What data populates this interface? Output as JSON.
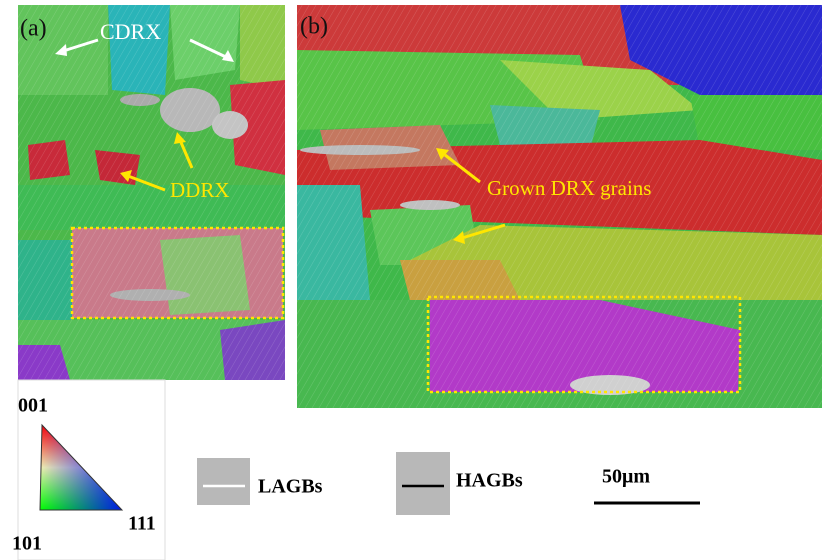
{
  "panels": {
    "a": {
      "label": "(a)",
      "annotations": [
        "CDRX",
        "DDRX"
      ]
    },
    "b": {
      "label": "(b)",
      "annotations": [
        "Grown DRX grains"
      ]
    }
  },
  "legend": {
    "ipf_corners": [
      "001",
      "101",
      "111"
    ],
    "boundaries": [
      "LAGBs",
      "HAGBs"
    ],
    "scale_bar": "50μm"
  }
}
